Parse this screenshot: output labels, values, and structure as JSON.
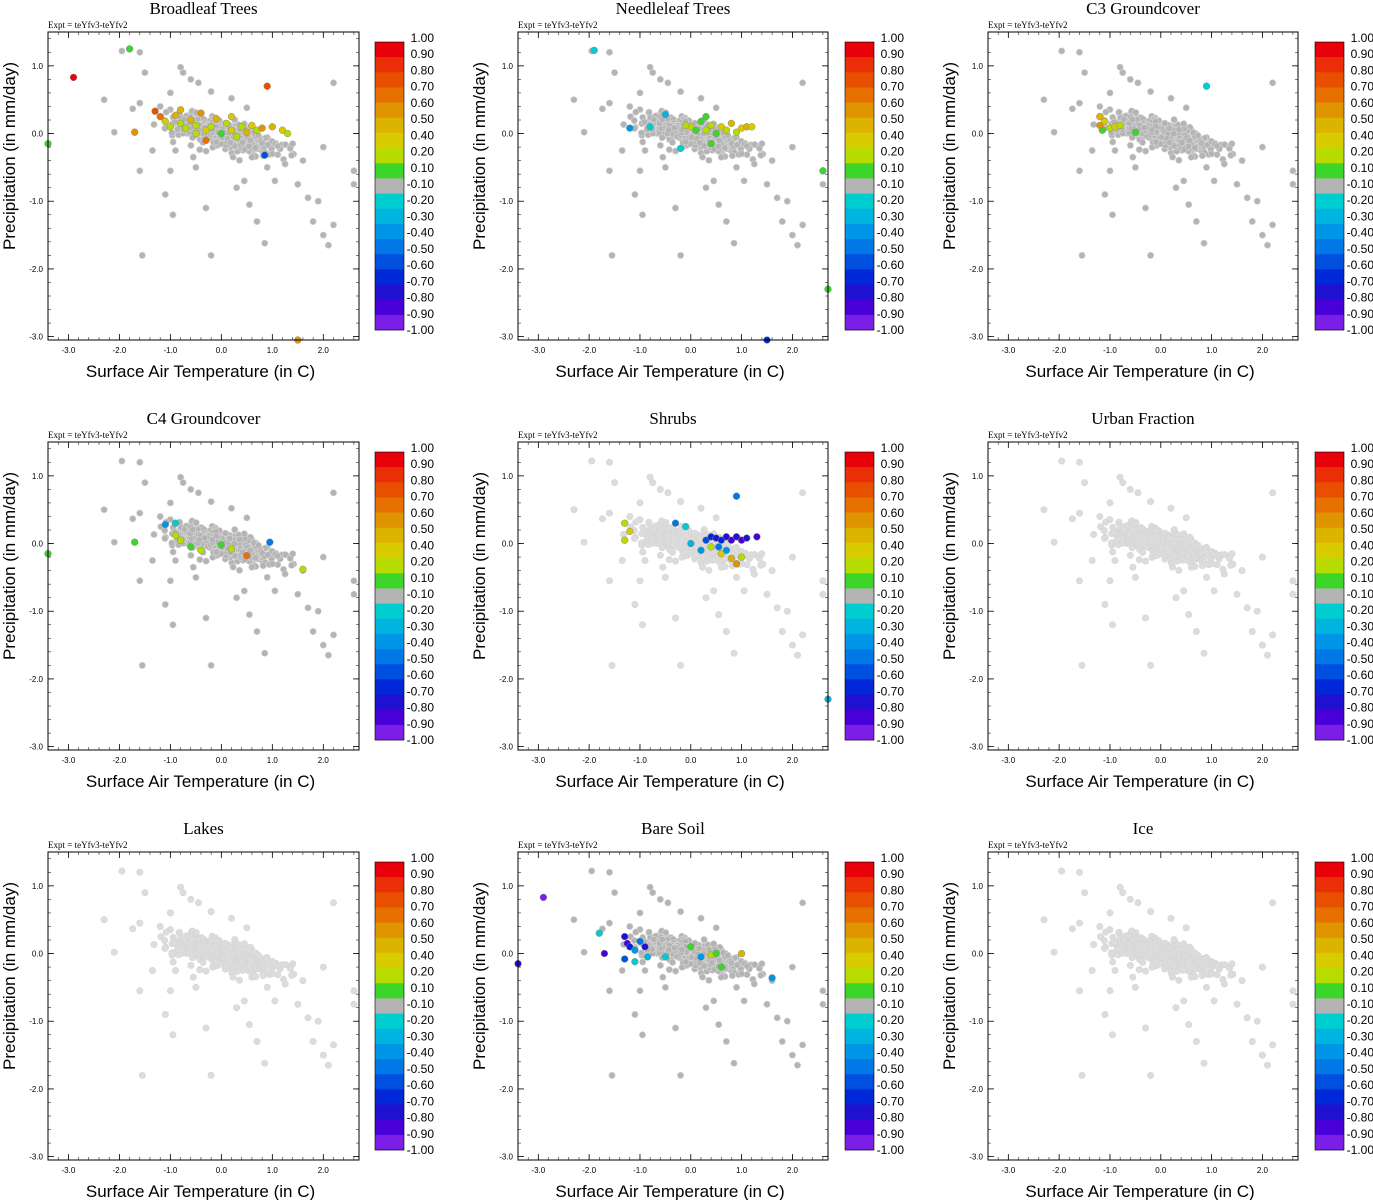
{
  "figure": {
    "expt_prefix": "Expt = ",
    "experiment": "teYfv3-teYfv2",
    "xlabel": "Surface Air Temperature (in C)",
    "ylabel": "Precipitation (in mm/day)"
  },
  "colorbar": {
    "labels": [
      "1.00",
      "0.90",
      "0.80",
      "0.70",
      "0.60",
      "0.50",
      "0.40",
      "0.20",
      "0.10",
      "-0.10",
      "-0.20",
      "-0.30",
      "-0.40",
      "-0.50",
      "-0.60",
      "-0.70",
      "-0.80",
      "-0.90",
      "-1.00"
    ],
    "colors": [
      "#e8000b",
      "#ea2e05",
      "#e85000",
      "#e87000",
      "#e09500",
      "#dcb400",
      "#d8cc00",
      "#b8dc00",
      "#3cd52a",
      "#b4b4b4",
      "#00cdd0",
      "#00b4e0",
      "#0096e8",
      "#0078e6",
      "#0050e0",
      "#0028d8",
      "#2010d0",
      "#4800d8",
      "#7a1ee8"
    ],
    "neutral_color": "#b4b4b4",
    "faint_color": "#dcdcdc"
  },
  "chart_data": [
    {
      "type": "scatter",
      "title": "Broadleaf Trees",
      "xlim": [
        -3.4,
        2.7
      ],
      "ylim": [
        -3.05,
        1.5
      ],
      "xticks": [
        -3,
        -2,
        -1,
        0,
        1,
        2
      ],
      "yticks": [
        1,
        0,
        -1,
        -2,
        -3
      ],
      "xtick_labels": [
        "-3.0",
        "-2.0",
        "-1.0",
        "0.0",
        "1.0",
        "2.0"
      ],
      "ytick_labels": [
        "1.0",
        "0.0",
        "-1.0",
        "-2.0",
        "-3.0"
      ],
      "xlabel": "Surface Air Temperature (in C)",
      "ylabel": "Precipitation (in mm/day)",
      "background_tone": "neutral",
      "colored_points": [
        [
          -2.9,
          0.83,
          1.0
        ],
        [
          -1.8,
          1.25,
          0.1
        ],
        [
          -3.4,
          -0.15,
          0.1
        ],
        [
          -1.7,
          0.02,
          0.6
        ],
        [
          -1.3,
          0.33,
          0.8
        ],
        [
          -1.2,
          0.25,
          0.7
        ],
        [
          -1.1,
          0.18,
          0.4
        ],
        [
          -1.0,
          0.1,
          0.3
        ],
        [
          -0.9,
          0.27,
          0.5
        ],
        [
          -0.8,
          0.15,
          0.2
        ],
        [
          -0.7,
          0.08,
          0.3
        ],
        [
          -0.6,
          0.2,
          0.5
        ],
        [
          -0.5,
          0.12,
          0.2
        ],
        [
          -0.4,
          0.3,
          0.6
        ],
        [
          -0.3,
          0.05,
          0.4
        ],
        [
          -0.2,
          0.1,
          0.3
        ],
        [
          -0.1,
          0.22,
          0.5
        ],
        [
          0.0,
          0.0,
          0.1
        ],
        [
          0.1,
          0.15,
          0.3
        ],
        [
          0.2,
          0.05,
          0.4
        ],
        [
          0.3,
          -0.05,
          0.2
        ],
        [
          0.4,
          0.1,
          0.3
        ],
        [
          0.5,
          0.02,
          0.5
        ],
        [
          0.6,
          0.12,
          0.4
        ],
        [
          0.7,
          0.05,
          0.2
        ],
        [
          0.8,
          0.08,
          0.6
        ],
        [
          0.9,
          0.7,
          0.8
        ],
        [
          1.0,
          0.1,
          0.5
        ],
        [
          1.2,
          0.05,
          0.4
        ],
        [
          1.3,
          0.0,
          0.2
        ],
        [
          -0.3,
          -0.1,
          0.7
        ],
        [
          0.85,
          -0.32,
          -0.6
        ],
        [
          1.5,
          -3.05,
          0.6
        ],
        [
          -0.5,
          0.0,
          0.2
        ],
        [
          0.2,
          0.25,
          0.4
        ],
        [
          -0.8,
          0.35,
          0.5
        ]
      ]
    },
    {
      "type": "scatter",
      "title": "Needleleaf Trees",
      "xlim": [
        -3.4,
        2.7
      ],
      "ylim": [
        -3.05,
        1.5
      ],
      "xticks": [
        -3,
        -2,
        -1,
        0,
        1,
        2
      ],
      "yticks": [
        1,
        0,
        -1,
        -2,
        -3
      ],
      "xtick_labels": [
        "-3.0",
        "-2.0",
        "-1.0",
        "0.0",
        "1.0",
        "2.0"
      ],
      "ytick_labels": [
        "1.0",
        "0.0",
        "-1.0",
        "-2.0",
        "-3.0"
      ],
      "xlabel": "Surface Air Temperature (in C)",
      "ylabel": "Precipitation (in mm/day)",
      "background_tone": "neutral",
      "colored_points": [
        [
          -1.9,
          1.23,
          -0.2
        ],
        [
          -1.2,
          0.08,
          -0.4
        ],
        [
          -0.5,
          0.28,
          -0.3
        ],
        [
          -0.2,
          -0.22,
          -0.2
        ],
        [
          0.0,
          0.1,
          0.2
        ],
        [
          0.2,
          0.18,
          0.1
        ],
        [
          0.3,
          0.05,
          0.2
        ],
        [
          0.4,
          0.12,
          0.3
        ],
        [
          0.5,
          0.0,
          0.1
        ],
        [
          0.6,
          0.1,
          0.4
        ],
        [
          0.7,
          0.05,
          0.3
        ],
        [
          0.8,
          0.15,
          0.5
        ],
        [
          0.9,
          0.02,
          0.2
        ],
        [
          1.0,
          0.08,
          0.4
        ],
        [
          1.1,
          0.1,
          0.5
        ],
        [
          1.2,
          0.1,
          0.4
        ],
        [
          0.1,
          0.05,
          0.1
        ],
        [
          -0.1,
          0.12,
          0.2
        ],
        [
          0.3,
          0.25,
          0.1
        ],
        [
          2.6,
          -0.55,
          0.1
        ],
        [
          2.7,
          -2.3,
          0.1
        ],
        [
          1.5,
          -3.05,
          -0.7
        ],
        [
          0.4,
          -0.15,
          0.1
        ],
        [
          -0.8,
          0.1,
          -0.2
        ]
      ]
    },
    {
      "type": "scatter",
      "title": "C3 Groundcover",
      "xlim": [
        -3.4,
        2.7
      ],
      "ylim": [
        -3.05,
        1.5
      ],
      "xticks": [
        -3,
        -2,
        -1,
        0,
        1,
        2
      ],
      "yticks": [
        1,
        0,
        -1,
        -2,
        -3
      ],
      "xtick_labels": [
        "-3.0",
        "-2.0",
        "-1.0",
        "0.0",
        "1.0",
        "2.0"
      ],
      "ytick_labels": [
        "1.0",
        "0.0",
        "-1.0",
        "-2.0",
        "-3.0"
      ],
      "xlabel": "Surface Air Temperature (in C)",
      "ylabel": "Precipitation (in mm/day)",
      "background_tone": "neutral",
      "colored_points": [
        [
          -1.2,
          0.25,
          0.5
        ],
        [
          -1.1,
          0.18,
          0.4
        ],
        [
          -1.0,
          0.08,
          0.2
        ],
        [
          -1.15,
          0.05,
          0.1
        ],
        [
          -0.9,
          0.1,
          0.4
        ],
        [
          -0.8,
          0.12,
          0.3
        ],
        [
          -0.5,
          0.02,
          0.1
        ],
        [
          -1.2,
          0.12,
          0.6
        ],
        [
          0.9,
          0.7,
          -0.2
        ]
      ]
    },
    {
      "type": "scatter",
      "title": "C4 Groundcover",
      "xlim": [
        -3.4,
        2.7
      ],
      "ylim": [
        -3.05,
        1.5
      ],
      "xticks": [
        -3,
        -2,
        -1,
        0,
        1,
        2
      ],
      "yticks": [
        1,
        0,
        -1,
        -2,
        -3
      ],
      "xtick_labels": [
        "-3.0",
        "-2.0",
        "-1.0",
        "0.0",
        "1.0",
        "2.0"
      ],
      "ytick_labels": [
        "1.0",
        "0.0",
        "-1.0",
        "-2.0",
        "-3.0"
      ],
      "xlabel": "Surface Air Temperature (in C)",
      "ylabel": "Precipitation (in mm/day)",
      "background_tone": "neutral",
      "colored_points": [
        [
          -3.4,
          -0.15,
          0.1
        ],
        [
          -1.7,
          0.02,
          0.1
        ],
        [
          -1.1,
          0.28,
          -0.4
        ],
        [
          -0.9,
          0.3,
          -0.2
        ],
        [
          -0.9,
          0.12,
          0.2
        ],
        [
          -0.8,
          0.05,
          0.3
        ],
        [
          -0.6,
          -0.05,
          0.1
        ],
        [
          -0.4,
          -0.1,
          0.2
        ],
        [
          0.2,
          -0.08,
          0.3
        ],
        [
          0.5,
          -0.18,
          0.7
        ],
        [
          0.95,
          0.02,
          -0.5
        ],
        [
          1.6,
          -0.38,
          0.2
        ],
        [
          0.0,
          -0.02,
          0.1
        ]
      ]
    },
    {
      "type": "scatter",
      "title": "Shrubs",
      "xlim": [
        -3.4,
        2.7
      ],
      "ylim": [
        -3.05,
        1.5
      ],
      "xticks": [
        -3,
        -2,
        -1,
        0,
        1,
        2
      ],
      "yticks": [
        1,
        0,
        -1,
        -2,
        -3
      ],
      "xtick_labels": [
        "-3.0",
        "-2.0",
        "-1.0",
        "0.0",
        "1.0",
        "2.0"
      ],
      "ytick_labels": [
        "1.0",
        "0.0",
        "-1.0",
        "-2.0",
        "-3.0"
      ],
      "xlabel": "Surface Air Temperature (in C)",
      "ylabel": "Precipitation (in mm/day)",
      "background_tone": "faint",
      "colored_points": [
        [
          -1.3,
          0.3,
          0.2
        ],
        [
          -1.2,
          0.18,
          0.4
        ],
        [
          -1.3,
          0.05,
          0.3
        ],
        [
          -0.3,
          0.3,
          -0.5
        ],
        [
          -0.1,
          0.25,
          -0.2
        ],
        [
          0.0,
          0.0,
          -0.3
        ],
        [
          0.2,
          -0.1,
          -0.4
        ],
        [
          0.3,
          0.05,
          -0.6
        ],
        [
          0.4,
          0.1,
          -0.7
        ],
        [
          0.5,
          0.08,
          -0.8
        ],
        [
          0.6,
          0.05,
          -0.7
        ],
        [
          0.7,
          0.1,
          -0.8
        ],
        [
          0.8,
          0.05,
          -0.9
        ],
        [
          0.9,
          0.1,
          -0.8
        ],
        [
          1.0,
          0.05,
          -0.9
        ],
        [
          1.1,
          0.08,
          -0.8
        ],
        [
          1.3,
          0.1,
          -0.9
        ],
        [
          0.9,
          0.7,
          -0.5
        ],
        [
          0.6,
          -0.15,
          0.4
        ],
        [
          0.8,
          -0.22,
          0.5
        ],
        [
          0.9,
          -0.3,
          0.6
        ],
        [
          1.0,
          -0.2,
          0.2
        ],
        [
          0.7,
          -0.1,
          -0.4
        ],
        [
          0.4,
          -0.05,
          0.3
        ],
        [
          0.55,
          -0.05,
          -0.5
        ],
        [
          2.7,
          -2.3,
          -0.3
        ]
      ]
    },
    {
      "type": "scatter",
      "title": "Urban Fraction",
      "xlim": [
        -3.4,
        2.7
      ],
      "ylim": [
        -3.05,
        1.5
      ],
      "xticks": [
        -3,
        -2,
        -1,
        0,
        1,
        2
      ],
      "yticks": [
        1,
        0,
        -1,
        -2,
        -3
      ],
      "xtick_labels": [
        "-3.0",
        "-2.0",
        "-1.0",
        "0.0",
        "1.0",
        "2.0"
      ],
      "ytick_labels": [
        "1.0",
        "0.0",
        "-1.0",
        "-2.0",
        "-3.0"
      ],
      "xlabel": "Surface Air Temperature (in C)",
      "ylabel": "Precipitation (in mm/day)",
      "background_tone": "faint",
      "colored_points": []
    },
    {
      "type": "scatter",
      "title": "Lakes",
      "xlim": [
        -3.4,
        2.7
      ],
      "ylim": [
        -3.05,
        1.5
      ],
      "xticks": [
        -3,
        -2,
        -1,
        0,
        1,
        2
      ],
      "yticks": [
        1,
        0,
        -1,
        -2,
        -3
      ],
      "xtick_labels": [
        "-3.0",
        "-2.0",
        "-1.0",
        "0.0",
        "1.0",
        "2.0"
      ],
      "ytick_labels": [
        "1.0",
        "0.0",
        "-1.0",
        "-2.0",
        "-3.0"
      ],
      "xlabel": "Surface Air Temperature (in C)",
      "ylabel": "Precipitation (in mm/day)",
      "background_tone": "faint",
      "colored_points": []
    },
    {
      "type": "scatter",
      "title": "Bare Soil",
      "xlim": [
        -3.4,
        2.7
      ],
      "ylim": [
        -3.05,
        1.5
      ],
      "xticks": [
        -3,
        -2,
        -1,
        0,
        1,
        2
      ],
      "yticks": [
        1,
        0,
        -1,
        -2,
        -3
      ],
      "xtick_labels": [
        "-3.0",
        "-2.0",
        "-1.0",
        "0.0",
        "1.0",
        "2.0"
      ],
      "ytick_labels": [
        "1.0",
        "0.0",
        "-1.0",
        "-2.0",
        "-3.0"
      ],
      "xlabel": "Surface Air Temperature (in C)",
      "ylabel": "Precipitation (in mm/day)",
      "background_tone": "neutral",
      "colored_points": [
        [
          -2.9,
          0.83,
          -1.0
        ],
        [
          -3.4,
          -0.15,
          -0.8
        ],
        [
          -1.8,
          0.3,
          -0.2
        ],
        [
          -1.7,
          0.0,
          -0.9
        ],
        [
          -1.3,
          0.25,
          -0.8
        ],
        [
          -1.25,
          0.15,
          -0.9
        ],
        [
          -1.2,
          0.1,
          -0.7
        ],
        [
          -1.1,
          0.05,
          -0.4
        ],
        [
          -1.0,
          0.18,
          -0.5
        ],
        [
          -0.9,
          0.1,
          -0.8
        ],
        [
          -0.85,
          -0.05,
          -0.3
        ],
        [
          -0.5,
          -0.05,
          -0.2
        ],
        [
          -1.3,
          -0.08,
          -0.6
        ],
        [
          -1.1,
          -0.12,
          -0.2
        ],
        [
          0.0,
          0.1,
          0.1
        ],
        [
          0.2,
          -0.05,
          -0.4
        ],
        [
          0.4,
          -0.02,
          0.2
        ],
        [
          0.6,
          -0.2,
          0.1
        ],
        [
          1.0,
          0.0,
          0.5
        ],
        [
          1.6,
          -0.36,
          -0.4
        ],
        [
          0.5,
          0.0,
          0.1
        ]
      ]
    },
    {
      "type": "scatter",
      "title": "Ice",
      "xlim": [
        -3.4,
        2.7
      ],
      "ylim": [
        -3.05,
        1.5
      ],
      "xticks": [
        -3,
        -2,
        -1,
        0,
        1,
        2
      ],
      "yticks": [
        1,
        0,
        -1,
        -2,
        -3
      ],
      "xtick_labels": [
        "-3.0",
        "-2.0",
        "-1.0",
        "0.0",
        "1.0",
        "2.0"
      ],
      "ytick_labels": [
        "1.0",
        "0.0",
        "-1.0",
        "-2.0",
        "-3.0"
      ],
      "xlabel": "Surface Air Temperature (in C)",
      "ylabel": "Precipitation (in mm/day)",
      "background_tone": "faint",
      "colored_points": []
    }
  ]
}
